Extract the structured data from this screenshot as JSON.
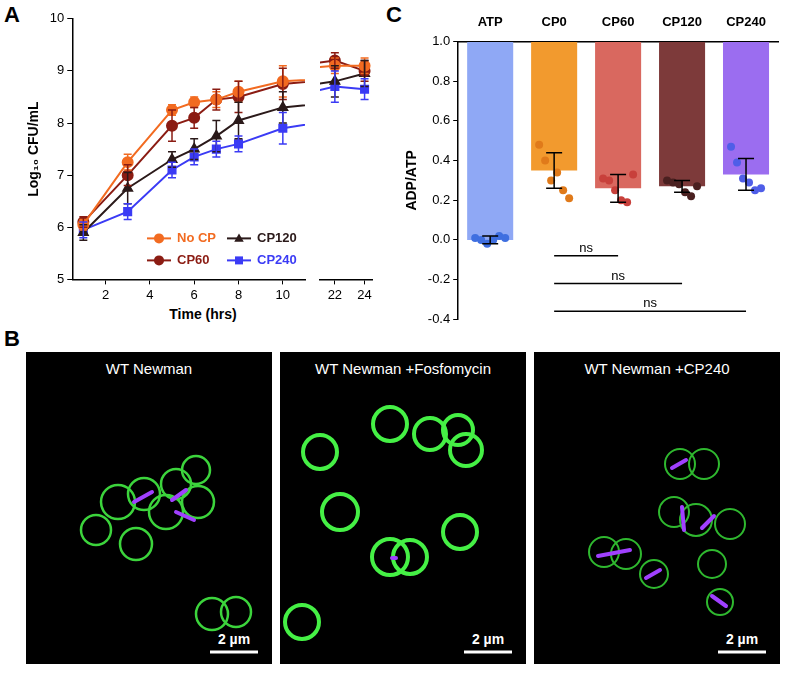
{
  "chart_data": [
    {
      "label": "A",
      "type": "line",
      "x": [
        1,
        3,
        5,
        6,
        7,
        8,
        10,
        22,
        24
      ],
      "series": [
        {
          "name": "No CP",
          "color": "#f26b21",
          "marker": "circle",
          "values": [
            6.05,
            7.25,
            8.25,
            8.4,
            8.45,
            8.6,
            8.8,
            9.1,
            9.1
          ],
          "errors": [
            0.1,
            0.15,
            0.1,
            0.1,
            0.15,
            0.2,
            0.3,
            0.15,
            0.15
          ]
        },
        {
          "name": "CP60",
          "color": "#8b1c13",
          "marker": "circle",
          "values": [
            6.1,
            7.0,
            7.95,
            8.1,
            8.45,
            8.5,
            8.75,
            9.2,
            9.0
          ],
          "errors": [
            0.1,
            0.2,
            0.3,
            0.2,
            0.2,
            0.3,
            0.3,
            0.15,
            0.2
          ]
        },
        {
          "name": "CP120",
          "color": "#2b1a1a",
          "marker": "triangle",
          "values": [
            5.9,
            6.75,
            7.3,
            7.5,
            7.75,
            8.05,
            8.3,
            8.8,
            8.95
          ],
          "errors": [
            0.15,
            0.3,
            0.15,
            0.2,
            0.3,
            0.35,
            0.3,
            0.3,
            0.25
          ]
        },
        {
          "name": "CP240",
          "color": "#3b3bf5",
          "marker": "square",
          "values": [
            5.95,
            6.3,
            7.1,
            7.35,
            7.5,
            7.6,
            7.9,
            8.7,
            8.65
          ],
          "errors": [
            0.15,
            0.15,
            0.15,
            0.15,
            0.15,
            0.15,
            0.3,
            0.3,
            0.2
          ]
        }
      ],
      "xlim": [
        0.5,
        24.5
      ],
      "x_break": [
        11,
        21
      ],
      "xticks": [
        2,
        4,
        6,
        8,
        10,
        22,
        24
      ],
      "ylim": [
        5,
        10
      ],
      "yticks": [
        5,
        6,
        7,
        8,
        9,
        10
      ],
      "x_label": "Time (hrs)",
      "y_label": "Log₁₀ CFU/mL",
      "legend": "lower right",
      "grid": false
    },
    {
      "label": "C",
      "type": "bar",
      "categories": [
        "ATP",
        "CP0",
        "CP60",
        "CP120",
        "CP240"
      ],
      "values": [
        0.0,
        0.35,
        0.26,
        0.27,
        0.33
      ],
      "errors": [
        0.02,
        0.09,
        0.07,
        0.03,
        0.08
      ],
      "colors": [
        "#8fa8f5",
        "#f29a2e",
        "#d9685f",
        "#7d3a3a",
        "#9b6df0"
      ],
      "points": [
        [
          0.01,
          0.0,
          -0.02,
          0.0,
          0.02,
          0.01
        ],
        [
          0.48,
          0.4,
          0.3,
          0.34,
          0.25,
          0.21
        ],
        [
          0.31,
          0.3,
          0.25,
          0.2,
          0.19,
          0.33
        ],
        [
          0.3,
          0.29,
          0.28,
          0.24,
          0.22,
          0.27
        ],
        [
          0.47,
          0.39,
          0.31,
          0.29,
          0.25,
          0.26
        ]
      ],
      "point_colors": [
        "#3f6fe0",
        "#e07a1a",
        "#c8403b",
        "#4a2020",
        "#4f5ee8"
      ],
      "ylim": [
        -0.4,
        1.0
      ],
      "yticks": [
        -0.4,
        -0.2,
        {
          "value": 0,
          "label": "0.0"
        },
        0.2,
        0.4,
        0.6,
        0.8,
        {
          "value": 1,
          "label": "1.0"
        }
      ],
      "y_label": "ADP/ATP",
      "comparisons": [
        {
          "from": "CP0",
          "to": "CP60",
          "label": "ns",
          "y": -0.08
        },
        {
          "from": "CP0",
          "to": "CP120",
          "label": "ns",
          "y": -0.22
        },
        {
          "from": "CP0",
          "to": "CP240",
          "label": "ns",
          "y": -0.36
        }
      ],
      "grid": false
    }
  ],
  "images": {
    "label": "B",
    "panels": [
      {
        "title": "WT Newman",
        "scale_bar": "2 µm"
      },
      {
        "title": "WT Newman +Fosfomycin",
        "scale_bar": "2 µm"
      },
      {
        "title": "WT Newman +CP240",
        "scale_bar": "2 µm"
      }
    ]
  }
}
